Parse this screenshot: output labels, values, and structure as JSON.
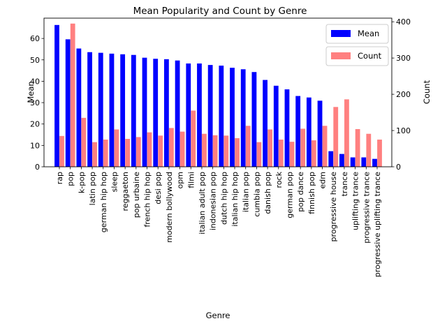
{
  "chart_data": {
    "type": "bar",
    "title": "Mean Popularity and Count by Genre",
    "xlabel": "Genre",
    "ylabel_left": "Mean",
    "ylabel_right": "Count",
    "ylim_left": [
      0,
      69.5
    ],
    "ylim_right": [
      0,
      410
    ],
    "yticks_left": [
      0,
      10,
      20,
      30,
      40,
      50,
      60
    ],
    "yticks_right": [
      0,
      100,
      200,
      300,
      400
    ],
    "grid": false,
    "categories": [
      "rap",
      "pop",
      "k-pop",
      "latin pop",
      "german hip hop",
      "sleep",
      "reggaeton",
      "pop urbaine",
      "french hip hop",
      "desi pop",
      "modern bollywood",
      "opm",
      "filmi",
      "italian adult pop",
      "indonesian pop",
      "dutch hip hop",
      "italian hip hop",
      "italian pop",
      "cumbia pop",
      "danish pop",
      "rock",
      "german pop",
      "pop dance",
      "finnish pop",
      "edm",
      "progressive house",
      "trance",
      "uplifting trance",
      "progressive trance",
      "progressive uplifting trance"
    ],
    "series": [
      {
        "name": "Mean",
        "axis": "left",
        "color": "#0000ff",
        "values": [
          66.3,
          59.6,
          55.3,
          53.6,
          53.3,
          52.9,
          52.6,
          52.3,
          51.0,
          50.5,
          50.3,
          49.7,
          48.3,
          48.3,
          47.6,
          47.3,
          46.3,
          45.6,
          44.3,
          40.6,
          37.9,
          36.2,
          33.1,
          32.4,
          30.9,
          7.3,
          6.0,
          4.4,
          4.4,
          3.7
        ]
      },
      {
        "name": "Count",
        "axis": "right",
        "color": "#ff8080",
        "values": [
          85,
          395,
          135,
          68,
          75,
          103,
          77,
          82,
          95,
          86,
          107,
          97,
          155,
          91,
          87,
          86,
          79,
          113,
          68,
          103,
          75,
          69,
          105,
          73,
          113,
          165,
          186,
          104,
          91,
          75
        ]
      }
    ],
    "legend": [
      {
        "label": "Mean",
        "color": "#0000ff"
      },
      {
        "label": "Count",
        "color": "#ff8080"
      }
    ],
    "legend_placement": "top-right"
  }
}
